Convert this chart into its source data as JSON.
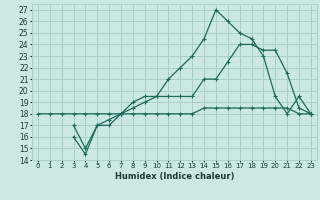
{
  "xlabel": "Humidex (Indice chaleur)",
  "bg_color": "#cce8e4",
  "grid_color": "#aacfcb",
  "line_color": "#1a6b5a",
  "xlim": [
    -0.5,
    23.5
  ],
  "ylim": [
    14,
    27.5
  ],
  "xticks": [
    0,
    1,
    2,
    3,
    4,
    5,
    6,
    7,
    8,
    9,
    10,
    11,
    12,
    13,
    14,
    15,
    16,
    17,
    18,
    19,
    20,
    21,
    22,
    23
  ],
  "yticks": [
    14,
    15,
    16,
    17,
    18,
    19,
    20,
    21,
    22,
    23,
    24,
    25,
    26,
    27
  ],
  "line1_x": [
    0,
    1,
    2,
    3,
    4,
    5,
    6,
    7,
    8,
    9,
    10,
    11,
    12,
    13,
    14,
    15,
    16,
    17,
    18,
    19,
    20,
    21,
    22,
    23
  ],
  "line1_y": [
    18,
    18,
    18,
    18,
    18,
    18,
    18,
    18,
    18,
    18,
    18,
    18,
    18,
    18,
    18.5,
    18.5,
    18.5,
    18.5,
    18.5,
    18.5,
    18.5,
    18.5,
    18,
    18
  ],
  "line2_x": [
    3,
    4,
    5,
    6,
    7,
    8,
    9,
    10,
    11,
    12,
    13,
    14,
    15,
    16,
    17,
    18,
    19,
    20,
    21,
    22,
    23
  ],
  "line2_y": [
    17,
    15,
    17,
    17.5,
    18,
    19,
    19.5,
    19.5,
    19.5,
    19.5,
    19.5,
    21,
    21,
    22.5,
    24,
    24,
    23.5,
    23.5,
    21.5,
    18.5,
    18
  ],
  "line3_x": [
    3,
    4,
    5,
    6,
    7,
    8,
    9,
    10,
    11,
    12,
    13,
    14,
    15,
    16,
    17,
    18,
    19,
    20,
    21,
    22,
    23
  ],
  "line3_y": [
    16,
    14.5,
    17,
    17,
    18,
    18.5,
    19,
    19.5,
    21,
    22,
    23,
    24.5,
    27,
    26,
    25,
    24.5,
    23,
    19.5,
    18,
    19.5,
    18
  ]
}
